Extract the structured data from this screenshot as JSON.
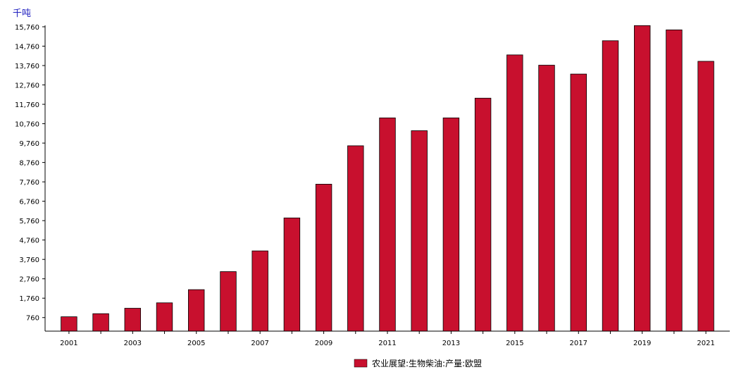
{
  "chart_data": {
    "type": "bar",
    "unit_label": "千吨",
    "categories": [
      "2001",
      "2002",
      "2003",
      "2004",
      "2005",
      "2006",
      "2007",
      "2008",
      "2009",
      "2010",
      "2011",
      "2012",
      "2013",
      "2014",
      "2015",
      "2016",
      "2017",
      "2018",
      "2019",
      "2020",
      "2021"
    ],
    "x_tick_labels": [
      "2001",
      "2003",
      "2005",
      "2007",
      "2009",
      "2011",
      "2013",
      "2015",
      "2017",
      "2019",
      "2021"
    ],
    "series": [
      {
        "name": "农业展望:生物柴油:产量:欧盟",
        "color": "#c8102e",
        "values": [
          800,
          960,
          1240,
          1520,
          2200,
          3130,
          4200,
          5900,
          7640,
          9620,
          11060,
          10400,
          11060,
          12080,
          14310,
          13780,
          13320,
          15040,
          15820,
          15600,
          13980
        ]
      }
    ],
    "y_ticks": [
      "760",
      "1,760",
      "2,760",
      "3,760",
      "4,760",
      "5,760",
      "6,760",
      "7,760",
      "8,760",
      "9,760",
      "10,760",
      "11,760",
      "12,760",
      "13,760",
      "14,760",
      "15,760"
    ],
    "ylim": [
      60,
      15760
    ],
    "legend_position": "bottom-center",
    "grid": false
  }
}
